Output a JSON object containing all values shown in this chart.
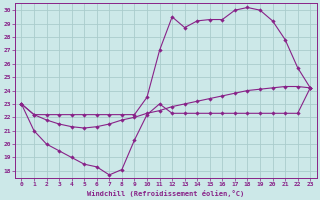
{
  "xlabel": "Windchill (Refroidissement éolien,°C)",
  "background_color": "#cce8e8",
  "grid_color": "#aacccc",
  "line_color": "#882288",
  "xlim": [
    -0.5,
    23.5
  ],
  "ylim": [
    17.5,
    30.5
  ],
  "xticks": [
    0,
    1,
    2,
    3,
    4,
    5,
    6,
    7,
    8,
    9,
    10,
    11,
    12,
    13,
    14,
    15,
    16,
    17,
    18,
    19,
    20,
    21,
    22,
    23
  ],
  "yticks": [
    18,
    19,
    20,
    21,
    22,
    23,
    24,
    25,
    26,
    27,
    28,
    29,
    30
  ],
  "series": [
    {
      "x": [
        0,
        1,
        2,
        3,
        4,
        5,
        6,
        7,
        8,
        9,
        10,
        11,
        12,
        13,
        14,
        15,
        16,
        17,
        18,
        19,
        20,
        21,
        22,
        23
      ],
      "y": [
        23,
        21,
        20,
        19.5,
        19,
        18.5,
        18.3,
        17.7,
        18.1,
        20.3,
        22.2,
        23.0,
        22.3,
        22.3,
        22.3,
        22.3,
        22.3,
        22.3,
        22.3,
        22.3,
        22.3,
        22.3,
        22.3,
        24.2
      ]
    },
    {
      "x": [
        0,
        1,
        2,
        3,
        4,
        5,
        6,
        7,
        8,
        9,
        10,
        11,
        12,
        13,
        14,
        15,
        16,
        17,
        18,
        19,
        20,
        21,
        22,
        23
      ],
      "y": [
        23,
        22.2,
        21.8,
        21.5,
        21.3,
        21.2,
        21.3,
        21.5,
        21.8,
        22.0,
        22.3,
        22.5,
        22.8,
        23.0,
        23.2,
        23.4,
        23.6,
        23.8,
        24.0,
        24.1,
        24.2,
        24.3,
        24.3,
        24.2
      ]
    },
    {
      "x": [
        0,
        1,
        2,
        3,
        4,
        5,
        6,
        7,
        8,
        9,
        10,
        11,
        12,
        13,
        14,
        15,
        16,
        17,
        18,
        19,
        20,
        21,
        22,
        23
      ],
      "y": [
        23,
        22.2,
        22.2,
        22.2,
        22.2,
        22.2,
        22.2,
        22.2,
        22.2,
        22.2,
        23.5,
        27.0,
        29.5,
        28.7,
        29.2,
        29.3,
        29.3,
        30.0,
        30.2,
        30.0,
        29.2,
        27.8,
        25.7,
        24.2
      ]
    }
  ]
}
